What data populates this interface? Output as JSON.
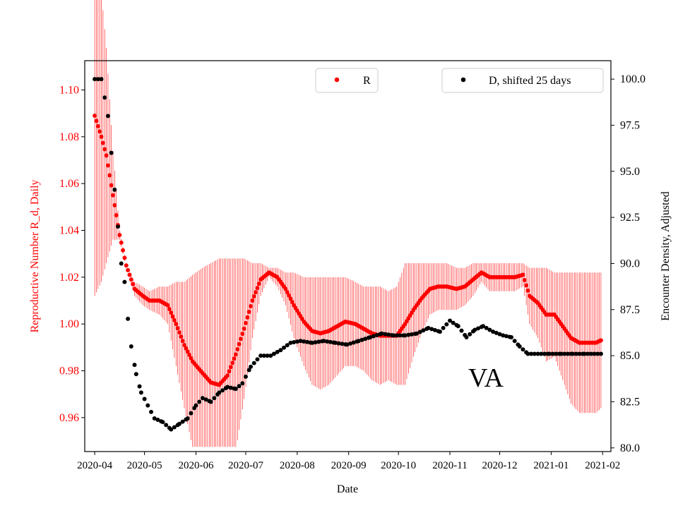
{
  "colors": {
    "r_series": "#ff0000",
    "d_series": "#000000",
    "left_axis_text": "#ff0000",
    "right_axis_text": "#000000",
    "frame": "#000000",
    "background": "#ffffff"
  },
  "annotation": "VA",
  "chart_data": {
    "type": "scatter",
    "xlabel": "Date",
    "ylabel_left": "Reproductive Number R_d, Daily",
    "ylabel_right": "Encounter Density, Adjusted",
    "x_range": [
      "2020-03-26",
      "2021-02-06"
    ],
    "ylim_left": [
      0.9455,
      1.1125
    ],
    "ylim_right": [
      79.8,
      101.0
    ],
    "x_tick_labels": [
      "2020-04",
      "2020-05",
      "2020-06",
      "2020-07",
      "2020-08",
      "2020-09",
      "2020-10",
      "2020-11",
      "2020-12",
      "2021-01",
      "2021-02"
    ],
    "x_ticks": [
      "2020-04-01",
      "2020-05-01",
      "2020-06-01",
      "2020-07-01",
      "2020-08-01",
      "2020-09-01",
      "2020-10-01",
      "2020-11-01",
      "2020-12-01",
      "2021-01-01",
      "2021-02-01"
    ],
    "y_left_ticks": [
      0.96,
      0.98,
      1.0,
      1.02,
      1.04,
      1.06,
      1.08,
      1.1
    ],
    "y_left_tick_labels": [
      "0.96",
      "0.98",
      "1.00",
      "1.02",
      "1.04",
      "1.06",
      "1.08",
      "1.10"
    ],
    "y_right_ticks": [
      80.0,
      82.5,
      85.0,
      87.5,
      90.0,
      92.5,
      95.0,
      97.5,
      100.0
    ],
    "y_right_tick_labels": [
      "80.0",
      "82.5",
      "85.0",
      "87.5",
      "90.0",
      "92.5",
      "95.0",
      "97.5",
      "100.0"
    ],
    "legend": {
      "r_label": "R",
      "r_placement": "top-center",
      "d_label": "D, shifted 25 days",
      "d_placement": "top-right"
    },
    "series": [
      {
        "name": "R",
        "axis": "left",
        "marker": "dot",
        "error_bars": true,
        "points": [
          [
            "2020-04-01",
            1.089,
            1.006
          ],
          [
            "2020-04-05",
            1.08,
            1.012
          ],
          [
            "2020-04-08",
            1.072,
            1.02
          ],
          [
            "2020-04-12",
            1.055,
            1.03
          ],
          [
            "2020-04-16",
            1.038,
            1.03
          ],
          [
            "2020-04-20",
            1.025,
            1.018
          ],
          [
            "2020-04-25",
            1.015,
            1.012
          ],
          [
            "2020-04-30",
            1.012,
            1.01
          ],
          [
            "2020-05-04",
            1.01,
            1.008
          ],
          [
            "2020-05-10",
            1.01,
            1.01
          ],
          [
            "2020-05-15",
            1.008,
            1.01
          ],
          [
            "2020-05-20",
            1.0,
            1.012
          ],
          [
            "2020-05-25",
            0.991,
            1.012
          ],
          [
            "2020-05-30",
            0.984,
            1.015
          ],
          [
            "2020-06-05",
            0.979,
            1.018
          ],
          [
            "2020-06-10",
            0.975,
            1.02
          ],
          [
            "2020-06-15",
            0.974,
            1.022
          ],
          [
            "2020-06-20",
            0.978,
            1.022
          ],
          [
            "2020-06-25",
            0.987,
            1.022
          ],
          [
            "2020-06-30",
            0.998,
            1.022
          ],
          [
            "2020-07-05",
            1.01,
            1.02
          ],
          [
            "2020-07-10",
            1.019,
            1.02
          ],
          [
            "2020-07-15",
            1.022,
            1.018
          ],
          [
            "2020-07-20",
            1.02,
            1.018
          ],
          [
            "2020-07-25",
            1.015,
            1.016
          ],
          [
            "2020-07-30",
            1.008,
            1.016
          ],
          [
            "2020-08-05",
            1.001,
            1.014
          ],
          [
            "2020-08-10",
            0.997,
            1.014
          ],
          [
            "2020-08-15",
            0.996,
            1.014
          ],
          [
            "2020-08-20",
            0.997,
            1.014
          ],
          [
            "2020-08-25",
            0.999,
            1.014
          ],
          [
            "2020-08-30",
            1.001,
            1.014
          ],
          [
            "2020-09-05",
            1.0,
            1.012
          ],
          [
            "2020-09-10",
            0.998,
            1.01
          ],
          [
            "2020-09-15",
            0.996,
            1.01
          ],
          [
            "2020-09-20",
            0.995,
            1.01
          ],
          [
            "2020-09-25",
            0.995,
            1.008
          ],
          [
            "2020-09-30",
            0.995,
            1.01
          ],
          [
            "2020-10-05",
            1.0,
            1.02
          ],
          [
            "2020-10-10",
            1.006,
            1.02
          ],
          [
            "2020-10-15",
            1.011,
            1.02
          ],
          [
            "2020-10-20",
            1.015,
            1.02
          ],
          [
            "2020-10-25",
            1.016,
            1.02
          ],
          [
            "2020-10-30",
            1.016,
            1.02
          ],
          [
            "2020-11-05",
            1.015,
            1.018
          ],
          [
            "2020-11-10",
            1.016,
            1.018
          ],
          [
            "2020-11-15",
            1.019,
            1.02
          ],
          [
            "2020-11-20",
            1.022,
            1.02
          ],
          [
            "2020-11-25",
            1.02,
            1.02
          ],
          [
            "2020-11-30",
            1.02,
            1.02
          ],
          [
            "2020-12-05",
            1.02,
            1.02
          ],
          [
            "2020-12-10",
            1.02,
            1.02
          ],
          [
            "2020-12-15",
            1.021,
            1.02
          ],
          [
            "2020-12-19",
            1.012,
            1.018
          ],
          [
            "2020-12-24",
            1.009,
            1.018
          ],
          [
            "2020-12-29",
            1.004,
            1.018
          ],
          [
            "2021-01-03",
            1.004,
            1.016
          ],
          [
            "2021-01-08",
            0.999,
            1.016
          ],
          [
            "2021-01-13",
            0.994,
            1.016
          ],
          [
            "2021-01-18",
            0.992,
            1.016
          ],
          [
            "2021-01-23",
            0.992,
            1.016
          ],
          [
            "2021-01-28",
            0.992,
            1.016
          ],
          [
            "2021-01-31",
            0.993,
            1.016
          ]
        ]
      },
      {
        "name": "D, shifted 25 days",
        "axis": "right",
        "marker": "dot",
        "points": [
          [
            "2020-04-01",
            100.0
          ],
          [
            "2020-04-05",
            100.0
          ],
          [
            "2020-04-07",
            99.0
          ],
          [
            "2020-04-09",
            98.0
          ],
          [
            "2020-04-11",
            96.0
          ],
          [
            "2020-04-13",
            94.0
          ],
          [
            "2020-04-15",
            92.0
          ],
          [
            "2020-04-17",
            90.0
          ],
          [
            "2020-04-19",
            89.0
          ],
          [
            "2020-04-21",
            87.0
          ],
          [
            "2020-04-23",
            85.5
          ],
          [
            "2020-04-26",
            84.0
          ],
          [
            "2020-04-29",
            83.0
          ],
          [
            "2020-05-03",
            82.3
          ],
          [
            "2020-05-07",
            81.6
          ],
          [
            "2020-05-12",
            81.4
          ],
          [
            "2020-05-17",
            81.0
          ],
          [
            "2020-05-22",
            81.3
          ],
          [
            "2020-05-27",
            81.6
          ],
          [
            "2020-06-01",
            82.3
          ],
          [
            "2020-06-05",
            82.7
          ],
          [
            "2020-06-10",
            82.5
          ],
          [
            "2020-06-15",
            83.0
          ],
          [
            "2020-06-20",
            83.3
          ],
          [
            "2020-06-25",
            83.2
          ],
          [
            "2020-06-29",
            83.5
          ],
          [
            "2020-07-04",
            84.4
          ],
          [
            "2020-07-10",
            85.0
          ],
          [
            "2020-07-16",
            85.0
          ],
          [
            "2020-07-22",
            85.3
          ],
          [
            "2020-07-28",
            85.7
          ],
          [
            "2020-08-03",
            85.8
          ],
          [
            "2020-08-10",
            85.7
          ],
          [
            "2020-08-17",
            85.8
          ],
          [
            "2020-08-24",
            85.7
          ],
          [
            "2020-08-31",
            85.6
          ],
          [
            "2020-09-07",
            85.8
          ],
          [
            "2020-09-14",
            86.0
          ],
          [
            "2020-09-21",
            86.2
          ],
          [
            "2020-09-28",
            86.1
          ],
          [
            "2020-10-05",
            86.1
          ],
          [
            "2020-10-12",
            86.2
          ],
          [
            "2020-10-19",
            86.5
          ],
          [
            "2020-10-26",
            86.3
          ],
          [
            "2020-11-01",
            86.9
          ],
          [
            "2020-11-06",
            86.6
          ],
          [
            "2020-11-11",
            86.0
          ],
          [
            "2020-11-16",
            86.4
          ],
          [
            "2020-11-21",
            86.6
          ],
          [
            "2020-11-27",
            86.3
          ],
          [
            "2020-12-03",
            86.1
          ],
          [
            "2020-12-08",
            86.0
          ],
          [
            "2020-12-13",
            85.5
          ],
          [
            "2020-12-18",
            85.1
          ],
          [
            "2020-12-24",
            85.1
          ],
          [
            "2020-12-31",
            85.1
          ],
          [
            "2021-01-07",
            85.1
          ],
          [
            "2021-01-14",
            85.1
          ],
          [
            "2021-01-21",
            85.1
          ],
          [
            "2021-01-31",
            85.1
          ]
        ]
      }
    ]
  }
}
